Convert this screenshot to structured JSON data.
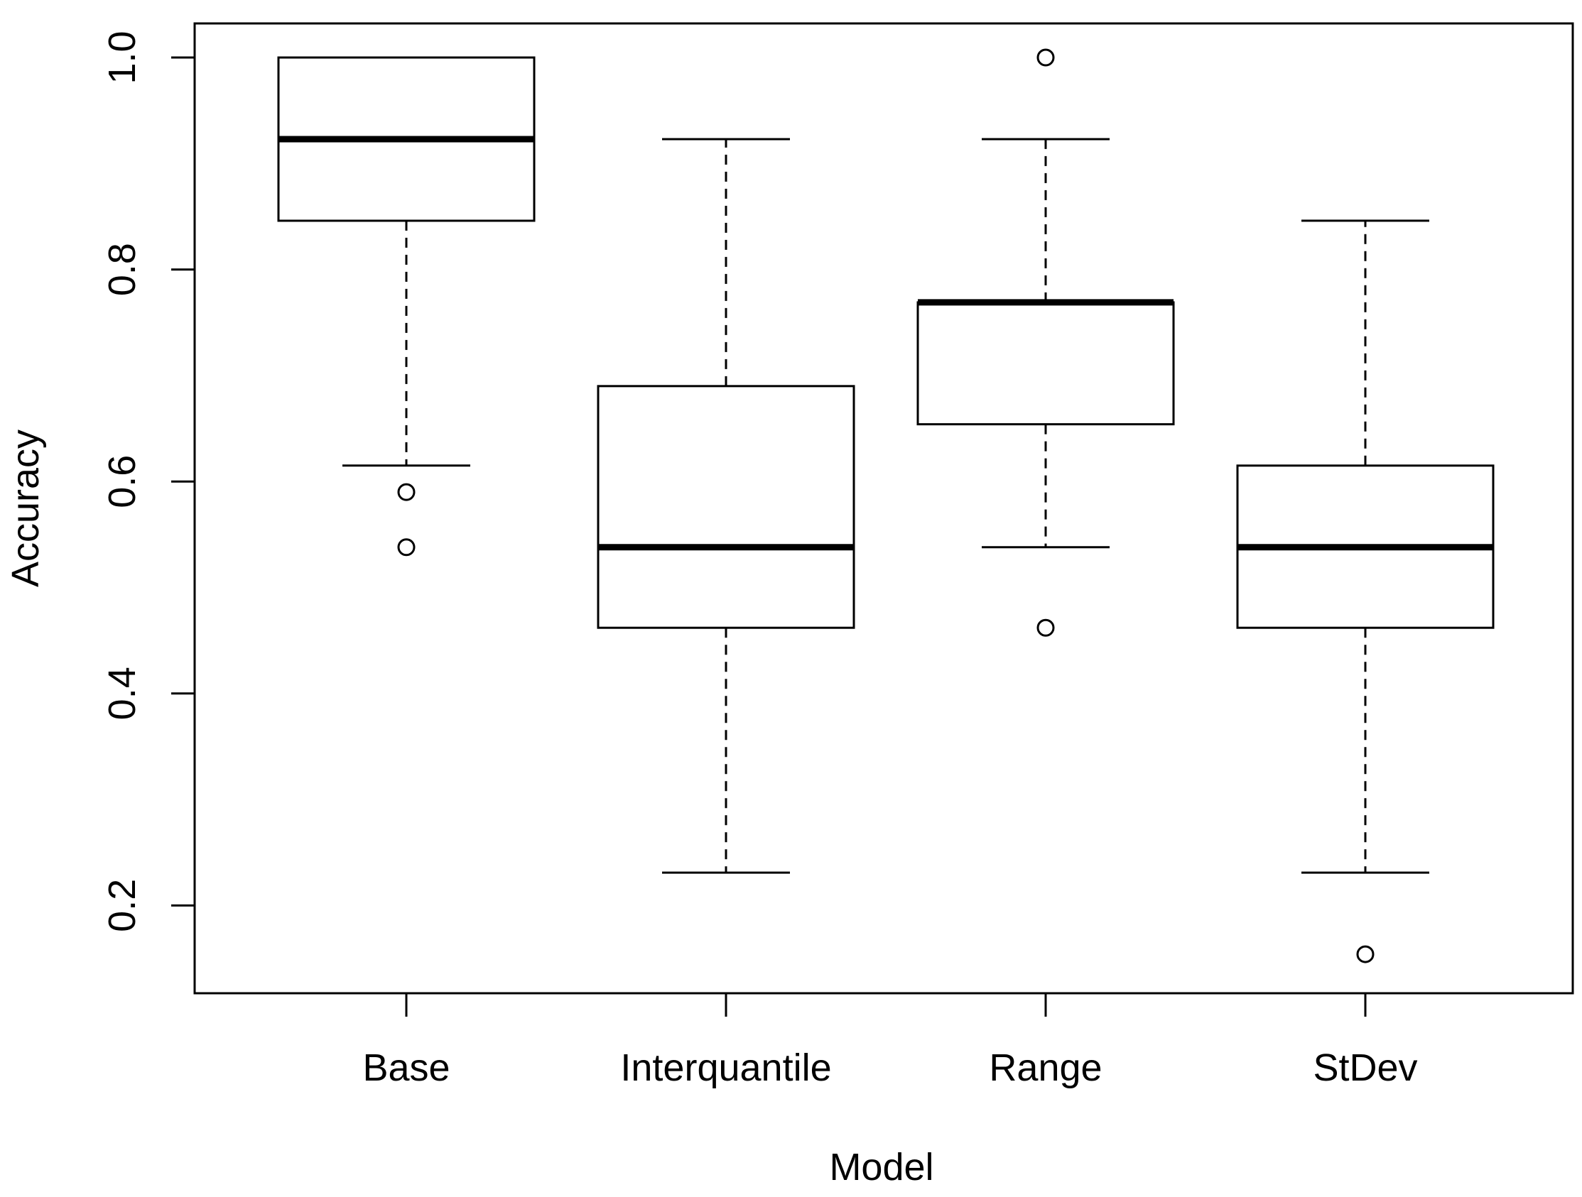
{
  "chart_data": {
    "type": "boxplot",
    "xlabel": "Model",
    "ylabel": "Accuracy",
    "title": "",
    "ylim": [
      0.12,
      1.07
    ],
    "yticks": [
      "0.2",
      "0.4",
      "0.6",
      "0.8",
      "1.0"
    ],
    "grid": false,
    "categories": [
      "Base",
      "Interquantile",
      "Range",
      "StDev"
    ],
    "boxes": [
      {
        "category": "Base",
        "whisker_low": 0.615,
        "q1": 0.846,
        "median": 0.923,
        "q3": 1.0,
        "whisker_high": 1.0,
        "outliers": [
          0.59,
          0.538
        ]
      },
      {
        "category": "Interquantile",
        "whisker_low": 0.231,
        "q1": 0.462,
        "median": 0.538,
        "q3": 0.69,
        "whisker_high": 0.923,
        "outliers": []
      },
      {
        "category": "Range",
        "whisker_low": 0.538,
        "q1": 0.654,
        "median": 0.769,
        "q3": 0.769,
        "whisker_high": 0.923,
        "outliers": [
          1.0,
          0.462
        ]
      },
      {
        "category": "StDev",
        "whisker_low": 0.231,
        "q1": 0.462,
        "median": 0.538,
        "q3": 0.615,
        "whisker_high": 0.846,
        "outliers": [
          0.154
        ]
      }
    ]
  }
}
